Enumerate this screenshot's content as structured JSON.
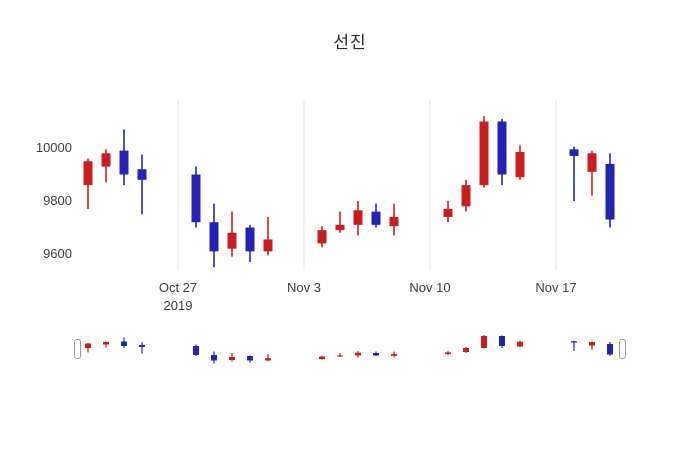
{
  "title": "선진",
  "chart_data": {
    "type": "candlestick",
    "title": "선진",
    "up_color": "#c81e1e",
    "down_color": "#2424b4",
    "grid_color": "#e6e6e6",
    "legend": "none",
    "yticks": [
      10000,
      9800,
      9600
    ],
    "ylim": [
      9540,
      10180
    ],
    "xticks": [
      {
        "label": "Oct 27",
        "sub": "2019",
        "date": "2019-10-27"
      },
      {
        "label": "Nov 3",
        "sub": "",
        "date": "2019-11-03"
      },
      {
        "label": "Nov 10",
        "sub": "",
        "date": "2019-11-10"
      },
      {
        "label": "Nov 17",
        "sub": "",
        "date": "2019-11-17"
      }
    ],
    "candles": [
      {
        "date": "2019-10-22",
        "open": 9860,
        "high": 9960,
        "low": 9770,
        "close": 9950
      },
      {
        "date": "2019-10-23",
        "open": 9930,
        "high": 9995,
        "low": 9870,
        "close": 9980
      },
      {
        "date": "2019-10-24",
        "open": 9990,
        "high": 10070,
        "low": 9860,
        "close": 9900
      },
      {
        "date": "2019-10-25",
        "open": 9920,
        "high": 9975,
        "low": 9750,
        "close": 9880
      },
      {
        "date": "2019-10-28",
        "open": 9900,
        "high": 9930,
        "low": 9700,
        "close": 9720
      },
      {
        "date": "2019-10-29",
        "open": 9720,
        "high": 9790,
        "low": 9550,
        "close": 9610
      },
      {
        "date": "2019-10-30",
        "open": 9620,
        "high": 9760,
        "low": 9590,
        "close": 9680
      },
      {
        "date": "2019-10-31",
        "open": 9700,
        "high": 9710,
        "low": 9570,
        "close": 9610
      },
      {
        "date": "2019-11-01",
        "open": 9610,
        "high": 9740,
        "low": 9595,
        "close": 9655
      },
      {
        "date": "2019-11-04",
        "open": 9640,
        "high": 9705,
        "low": 9625,
        "close": 9690
      },
      {
        "date": "2019-11-05",
        "open": 9690,
        "high": 9760,
        "low": 9680,
        "close": 9710
      },
      {
        "date": "2019-11-06",
        "open": 9710,
        "high": 9800,
        "low": 9670,
        "close": 9765
      },
      {
        "date": "2019-11-07",
        "open": 9760,
        "high": 9790,
        "low": 9700,
        "close": 9710
      },
      {
        "date": "2019-11-08",
        "open": 9705,
        "high": 9790,
        "low": 9670,
        "close": 9740
      },
      {
        "date": "2019-11-11",
        "open": 9740,
        "high": 9800,
        "low": 9720,
        "close": 9770
      },
      {
        "date": "2019-11-12",
        "open": 9780,
        "high": 9880,
        "low": 9760,
        "close": 9860
      },
      {
        "date": "2019-11-13",
        "open": 9860,
        "high": 10120,
        "low": 9850,
        "close": 10100
      },
      {
        "date": "2019-11-14",
        "open": 10100,
        "high": 10110,
        "low": 9860,
        "close": 9900
      },
      {
        "date": "2019-11-15",
        "open": 9890,
        "high": 10010,
        "low": 9880,
        "close": 9985
      },
      {
        "date": "2019-11-18",
        "open": 9995,
        "high": 10005,
        "low": 9800,
        "close": 9970
      },
      {
        "date": "2019-11-19",
        "open": 9910,
        "high": 9990,
        "low": 9820,
        "close": 9980
      },
      {
        "date": "2019-11-20",
        "open": 9940,
        "high": 9980,
        "low": 9700,
        "close": 9730
      }
    ]
  }
}
